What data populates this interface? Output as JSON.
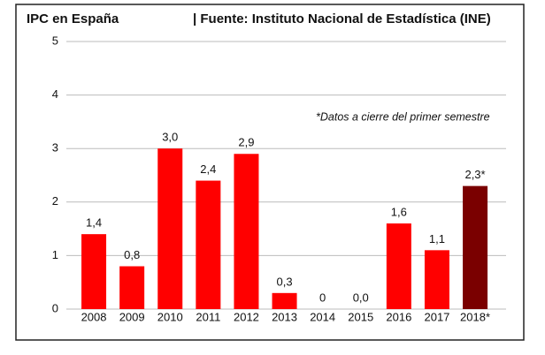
{
  "chart_data": {
    "type": "bar",
    "title": "IPC en España",
    "subtitle": "| Fuente: Instituto Nacional de Estadística (INE)",
    "annotation": "*Datos a cierre del primer semestre",
    "categories": [
      "2008",
      "2009",
      "2010",
      "2011",
      "2012",
      "2013",
      "2014",
      "2015",
      "2016",
      "2017",
      "2018*"
    ],
    "values": [
      1.4,
      0.8,
      3.0,
      2.4,
      2.9,
      0.3,
      0,
      0.0,
      1.6,
      1.1,
      2.3
    ],
    "value_labels": [
      "1,4",
      "0,8",
      "3,0",
      "2,4",
      "2,9",
      "0,3",
      "0",
      "0,0",
      "1,6",
      "1,1",
      "2,3*"
    ],
    "colors": [
      "#ff0000",
      "#ff0000",
      "#ff0000",
      "#ff0000",
      "#ff0000",
      "#ff0000",
      "#ff0000",
      "#ff0000",
      "#ff0000",
      "#ff0000",
      "#7a0000"
    ],
    "ylim": [
      0,
      5
    ],
    "yticks": [
      0,
      1,
      2,
      3,
      4,
      5
    ],
    "grid": true
  }
}
